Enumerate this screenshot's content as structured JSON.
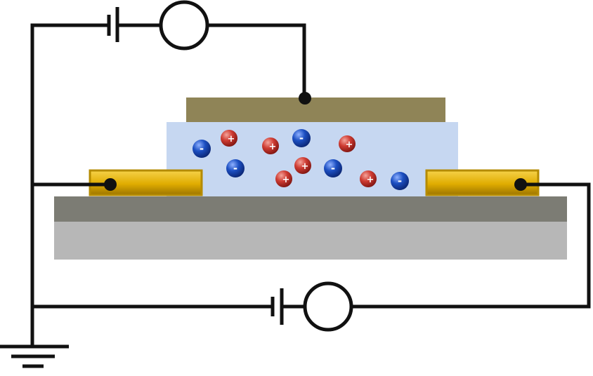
{
  "diagram": {
    "title": "Electrolyte-gated transistor circuit schematic",
    "colors": {
      "wire": "#111111",
      "gate": "#8f8457",
      "electrolyte": "#c6d7f1",
      "electrode": "#e6b600",
      "electrode_border": "#b58b00",
      "dielectric": "#7c7c74",
      "substrate": "#b7b7b7",
      "cation": "#c9362f",
      "anion": "#1443b3"
    },
    "ions": [
      {
        "type": "anion",
        "sign": "-"
      },
      {
        "type": "cation",
        "sign": "+"
      },
      {
        "type": "cation",
        "sign": "+"
      },
      {
        "type": "anion",
        "sign": "-"
      },
      {
        "type": "cation",
        "sign": "+"
      },
      {
        "type": "anion",
        "sign": "-"
      },
      {
        "type": "cation",
        "sign": "+"
      },
      {
        "type": "cation",
        "sign": "+"
      },
      {
        "type": "anion",
        "sign": "-"
      },
      {
        "type": "cation",
        "sign": "+"
      },
      {
        "type": "anion",
        "sign": "-"
      }
    ]
  }
}
